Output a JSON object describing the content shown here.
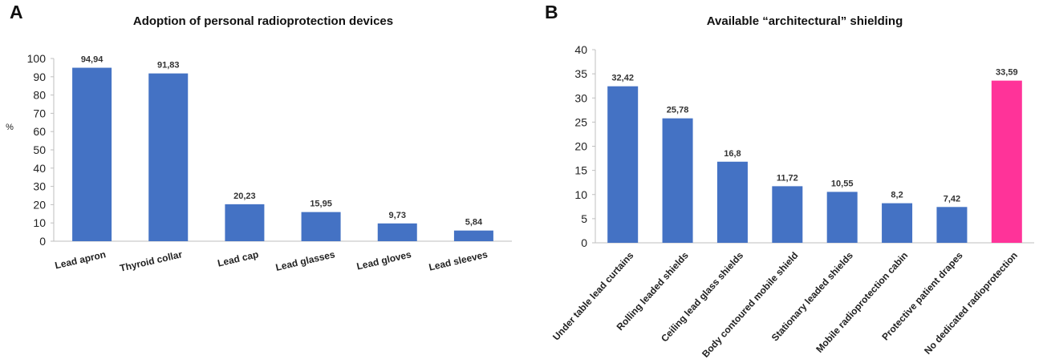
{
  "panels": {
    "a": {
      "letter": "A"
    },
    "b": {
      "letter": "B"
    }
  },
  "chart_data": [
    {
      "type": "bar",
      "title": "Adoption of personal radioprotection devices",
      "ylabel": "%",
      "xlabel": "",
      "ylim": [
        0,
        100
      ],
      "yticks": [
        0,
        10,
        20,
        30,
        40,
        50,
        60,
        70,
        80,
        90,
        100
      ],
      "categories": [
        "Lead apron",
        "Thyroid collar",
        "Lead cap",
        "Lead glasses",
        "Lead gloves",
        "Lead sleeves"
      ],
      "values": [
        94.94,
        91.83,
        20.23,
        15.95,
        9.73,
        5.84
      ],
      "data_labels": [
        "94,94",
        "91,83",
        "20,23",
        "15,95",
        "9,73",
        "5,84"
      ],
      "colors": [
        "#4472C4",
        "#4472C4",
        "#4472C4",
        "#4472C4",
        "#4472C4",
        "#4472C4"
      ],
      "grid": false
    },
    {
      "type": "bar",
      "title": "Available “architectural” shielding",
      "ylabel": "",
      "xlabel": "",
      "ylim": [
        0,
        40
      ],
      "yticks": [
        0,
        5,
        10,
        15,
        20,
        25,
        30,
        35,
        40
      ],
      "categories": [
        "Under table lead curtains",
        "Rolling leaded shields",
        "Ceiling lead glass shields",
        "Body contoured mobile shield",
        "Stationary leaded shields",
        "Mobile radioprotection cabin",
        "Protective patient drapes",
        "No dedicated radioprotection"
      ],
      "values": [
        32.42,
        25.78,
        16.8,
        11.72,
        10.55,
        8.2,
        7.42,
        33.59
      ],
      "data_labels": [
        "32,42",
        "25,78",
        "16,8",
        "11,72",
        "10,55",
        "8,2",
        "7,42",
        "33,59"
      ],
      "colors": [
        "#4472C4",
        "#4472C4",
        "#4472C4",
        "#4472C4",
        "#4472C4",
        "#4472C4",
        "#4472C4",
        "#FF3399"
      ],
      "grid": false
    }
  ]
}
